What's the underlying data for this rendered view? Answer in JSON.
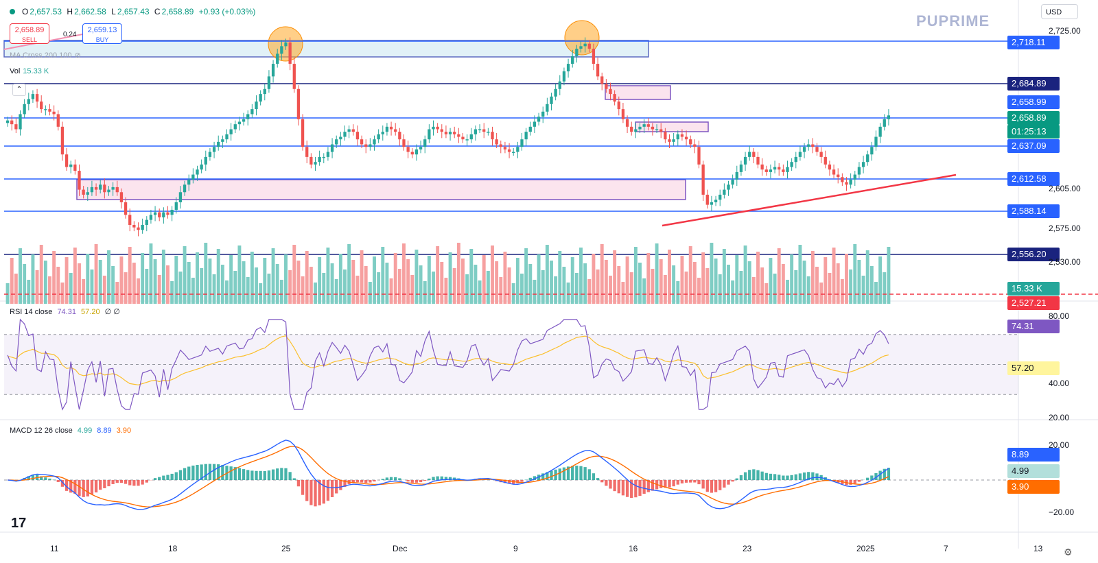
{
  "header": {
    "ohlc": [
      {
        "k": "O",
        "v": "2,657.53"
      },
      {
        "k": "H",
        "v": "2,662.58"
      },
      {
        "k": "L",
        "v": "2,657.43"
      },
      {
        "k": "C",
        "v": "2,658.89"
      },
      {
        "k": "",
        "v": "+0.93 (+0.03%)"
      }
    ],
    "sell_price": "2,658.89",
    "sell_label": "SELL",
    "buy_price": "2,659.13",
    "buy_label": "BUY",
    "spread": "0.24",
    "ma_label": "MA Cross 200 100",
    "vol_label": "Vol",
    "vol_value": "15.33 K"
  },
  "brand": {
    "name": "PUPRIME",
    "currency": "USD",
    "watermark": "17"
  },
  "colors": {
    "up": "#26a69a",
    "down": "#ef5350",
    "volume_up": "#7fcdc4",
    "volume_down": "#f6a0a0",
    "hline": "#2962ff",
    "hline_dark": "#1a237e",
    "box_fill": "#e1f1f7",
    "zone_fill": "#fbe4ee",
    "zone_border": "#7e57c2",
    "trend": "#f23645",
    "rsi": "#7e57c2",
    "rsi_ma": "#fbc02d",
    "macd": "#2962ff",
    "signal": "#ff6d00"
  },
  "price_tags": [
    {
      "label": "2,718.11",
      "color": "#2962ff"
    },
    {
      "label": "2,684.89",
      "color": "#1a237e"
    },
    {
      "label": "2,658.99",
      "color": "#2962ff"
    },
    {
      "label": "2,658.89",
      "color": "#089981",
      "sub": "01:25:13"
    },
    {
      "label": "2,637.09",
      "color": "#2962ff"
    },
    {
      "label": "2,612.58",
      "color": "#2962ff"
    },
    {
      "label": "2,588.14",
      "color": "#2962ff"
    },
    {
      "label": "2,556.20",
      "color": "#1a237e"
    },
    {
      "label": "15.33 K",
      "color": "#26a69a"
    },
    {
      "label": "2,527.21",
      "color": "#f23645"
    }
  ],
  "price_axis_ticks": [
    "2,725.00",
    "2,605.00",
    "2,575.00",
    "2,530.00"
  ],
  "rsi": {
    "label": "RSI 14 close",
    "value": "74.31",
    "ma_value": "57.20",
    "extra": "∅ ∅",
    "ticks": [
      "80.00",
      "40.00",
      "20.00"
    ],
    "levels": [
      70,
      50,
      30
    ]
  },
  "macd": {
    "label": "MACD 12 26 close",
    "hist": "4.99",
    "macd_value": "8.89",
    "signal_value": "3.90",
    "ticks": [
      "20.00",
      "−20.00"
    ]
  },
  "time_axis": [
    "11",
    "18",
    "25",
    "Dec",
    "9",
    "16",
    "23",
    "2025",
    "7",
    "13"
  ],
  "chart_data": {
    "type": "candlestick",
    "title": "",
    "timeframe_note": "",
    "price_levels": [
      2718.11,
      2684.89,
      2658.99,
      2637.09,
      2612.58,
      2588.14,
      2556.2
    ],
    "last_price": 2658.89,
    "closes": [
      2655,
      2652,
      2648,
      2660,
      2668,
      2672,
      2676,
      2670,
      2664,
      2664,
      2662,
      2660,
      2650,
      2628,
      2618,
      2620,
      2615,
      2600,
      2596,
      2598,
      2602,
      2600,
      2604,
      2598,
      2600,
      2602,
      2598,
      2590,
      2580,
      2572,
      2570,
      2568,
      2572,
      2576,
      2580,
      2582,
      2578,
      2582,
      2580,
      2584,
      2590,
      2598,
      2604,
      2608,
      2612,
      2616,
      2620,
      2626,
      2630,
      2634,
      2638,
      2640,
      2644,
      2648,
      2652,
      2654,
      2656,
      2660,
      2664,
      2670,
      2676,
      2680,
      2690,
      2700,
      2708,
      2714,
      2717,
      2700,
      2680,
      2656,
      2634,
      2626,
      2620,
      2622,
      2626,
      2626,
      2630,
      2636,
      2640,
      2642,
      2646,
      2648,
      2646,
      2640,
      2636,
      2634,
      2636,
      2640,
      2644,
      2646,
      2650,
      2648,
      2646,
      2640,
      2634,
      2630,
      2628,
      2632,
      2634,
      2640,
      2648,
      2650,
      2648,
      2646,
      2644,
      2646,
      2644,
      2642,
      2640,
      2640,
      2644,
      2648,
      2648,
      2646,
      2646,
      2640,
      2636,
      2634,
      2632,
      2630,
      2630,
      2634,
      2640,
      2646,
      2650,
      2654,
      2658,
      2662,
      2668,
      2674,
      2680,
      2686,
      2694,
      2700,
      2706,
      2712,
      2714,
      2716,
      2712,
      2700,
      2690,
      2684,
      2680,
      2676,
      2670,
      2664,
      2656,
      2650,
      2646,
      2648,
      2650,
      2652,
      2650,
      2648,
      2648,
      2646,
      2640,
      2638,
      2640,
      2644,
      2642,
      2640,
      2636,
      2634,
      2620,
      2596,
      2588,
      2590,
      2592,
      2596,
      2600,
      2604,
      2608,
      2614,
      2620,
      2626,
      2630,
      2626,
      2620,
      2616,
      2614,
      2616,
      2618,
      2616,
      2614,
      2618,
      2622,
      2626,
      2630,
      2634,
      2636,
      2634,
      2630,
      2626,
      2620,
      2616,
      2612,
      2610,
      2606,
      2604,
      2608,
      2612,
      2618,
      2622,
      2628,
      2634,
      2642,
      2650,
      2656,
      2659
    ],
    "volume_max": 100,
    "rsi_series_note": "",
    "x_ticks": [
      "11",
      "18",
      "25",
      "Dec",
      "9",
      "16",
      "23",
      "2025",
      "7",
      "13"
    ]
  }
}
